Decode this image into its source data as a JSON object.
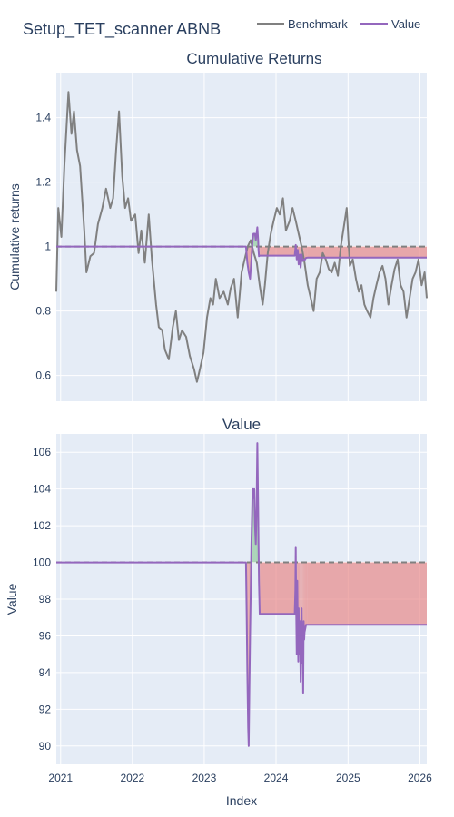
{
  "figure": {
    "title": "Setup_TET_scanner ABNB",
    "x_axis_label": "Index",
    "x_ticks": [
      "2021",
      "2022",
      "2023",
      "2024",
      "2025",
      "2026"
    ],
    "legend": [
      {
        "name": "Benchmark",
        "color": "#808080"
      },
      {
        "name": "Value",
        "color": "#9467bd"
      }
    ],
    "colors": {
      "plot_bg": "#e5ecf6",
      "grid": "#ffffff",
      "benchmark": "#808080",
      "value": "#9467bd",
      "baseline": "#808080",
      "gain_fill": "#8fc99a",
      "loss_fill": "#e88a8a"
    }
  },
  "chart_data": [
    {
      "type": "line",
      "title": "Cumulative Returns",
      "ylabel": "Cumulative returns",
      "ylim": [
        0.52,
        1.54
      ],
      "yticks": [
        0.6,
        0.8,
        1,
        1.2,
        1.4
      ],
      "xlim": [
        "2020-12-10",
        "2026-02-05"
      ],
      "baseline": 1.0,
      "series": [
        {
          "name": "Benchmark",
          "x": [
            "2020-12-10",
            "2020-12-20",
            "2021-01-05",
            "2021-01-20",
            "2021-02-10",
            "2021-02-25",
            "2021-03-10",
            "2021-03-25",
            "2021-04-10",
            "2021-05-01",
            "2021-05-12",
            "2021-06-01",
            "2021-06-20",
            "2021-07-10",
            "2021-08-01",
            "2021-08-20",
            "2021-09-10",
            "2021-09-25",
            "2021-10-10",
            "2021-10-25",
            "2021-11-10",
            "2021-11-25",
            "2021-12-10",
            "2021-12-25",
            "2022-01-15",
            "2022-02-01",
            "2022-02-15",
            "2022-03-05",
            "2022-03-25",
            "2022-04-10",
            "2022-05-01",
            "2022-05-15",
            "2022-06-01",
            "2022-06-15",
            "2022-07-05",
            "2022-07-25",
            "2022-08-10",
            "2022-08-25",
            "2022-09-10",
            "2022-10-01",
            "2022-10-20",
            "2022-11-10",
            "2022-11-25",
            "2022-12-10",
            "2022-12-28",
            "2023-01-15",
            "2023-02-01",
            "2023-02-15",
            "2023-03-01",
            "2023-03-20",
            "2023-04-10",
            "2023-05-01",
            "2023-05-15",
            "2023-06-01",
            "2023-06-20",
            "2023-07-10",
            "2023-07-25",
            "2023-08-10",
            "2023-08-25",
            "2023-09-10",
            "2023-09-25",
            "2023-10-10",
            "2023-10-25",
            "2023-11-05",
            "2023-11-20",
            "2023-12-05",
            "2023-12-20",
            "2024-01-05",
            "2024-01-20",
            "2024-02-05",
            "2024-02-20",
            "2024-03-10",
            "2024-03-25",
            "2024-04-10",
            "2024-04-25",
            "2024-05-10",
            "2024-05-25",
            "2024-06-10",
            "2024-06-25",
            "2024-07-10",
            "2024-07-25",
            "2024-08-10",
            "2024-08-25",
            "2024-09-10",
            "2024-09-25",
            "2024-10-10",
            "2024-10-25",
            "2024-11-10",
            "2024-11-25",
            "2024-12-10",
            "2024-12-25",
            "2025-01-10",
            "2025-01-25",
            "2025-02-10",
            "2025-02-25",
            "2025-03-10",
            "2025-03-25",
            "2025-04-08",
            "2025-04-25",
            "2025-05-10",
            "2025-05-25",
            "2025-06-10",
            "2025-06-25",
            "2025-07-10",
            "2025-07-25",
            "2025-08-10",
            "2025-08-25",
            "2025-09-10",
            "2025-09-25",
            "2025-10-10",
            "2025-10-25",
            "2025-11-10",
            "2025-11-25",
            "2025-12-10",
            "2025-12-25",
            "2026-01-10",
            "2026-01-25",
            "2026-02-05"
          ],
          "y": [
            0.86,
            1.12,
            1.03,
            1.25,
            1.48,
            1.35,
            1.42,
            1.3,
            1.25,
            1.05,
            0.92,
            0.97,
            0.98,
            1.07,
            1.12,
            1.18,
            1.12,
            1.15,
            1.3,
            1.42,
            1.22,
            1.12,
            1.15,
            1.08,
            1.1,
            0.98,
            1.05,
            0.95,
            1.1,
            0.96,
            0.82,
            0.75,
            0.74,
            0.68,
            0.65,
            0.75,
            0.8,
            0.71,
            0.74,
            0.72,
            0.66,
            0.62,
            0.58,
            0.62,
            0.67,
            0.78,
            0.84,
            0.82,
            0.9,
            0.84,
            0.86,
            0.82,
            0.87,
            0.9,
            0.78,
            0.92,
            0.96,
            1.0,
            1.02,
            0.98,
            0.95,
            0.88,
            0.82,
            0.88,
            0.98,
            1.04,
            1.08,
            1.12,
            1.1,
            1.15,
            1.05,
            1.08,
            1.12,
            1.08,
            1.04,
            1.0,
            0.95,
            0.88,
            0.84,
            0.8,
            0.9,
            0.92,
            0.98,
            0.96,
            0.93,
            0.92,
            0.95,
            0.91,
            1.0,
            1.06,
            1.12,
            0.94,
            0.96,
            0.9,
            0.86,
            0.88,
            0.82,
            0.8,
            0.78,
            0.84,
            0.88,
            0.92,
            0.94,
            0.9,
            0.82,
            0.88,
            0.93,
            0.96,
            0.88,
            0.86,
            0.78,
            0.84,
            0.9,
            0.92,
            0.96,
            0.88,
            0.92,
            0.84
          ]
        },
        {
          "name": "Value",
          "x": [
            "2020-12-10",
            "2023-08-01",
            "2023-08-08",
            "2023-08-15",
            "2023-08-22",
            "2023-08-29",
            "2023-09-04",
            "2023-09-08",
            "2023-09-12",
            "2023-09-16",
            "2023-09-20",
            "2023-09-24",
            "2023-09-28",
            "2023-10-02",
            "2023-10-04",
            "2023-10-06",
            "2023-10-10",
            "2023-10-14",
            "2024-04-05",
            "2024-04-10",
            "2024-04-15",
            "2024-04-20",
            "2024-04-25",
            "2024-05-01",
            "2024-05-05",
            "2024-05-10",
            "2024-05-15",
            "2024-05-20",
            "2024-05-25",
            "2024-06-01",
            "2024-06-10",
            "2026-02-05"
          ],
          "y": [
            1.0,
            1.0,
            0.95,
            0.92,
            0.9,
            0.96,
            1.02,
            1.04,
            1.04,
            1.04,
            1.02,
            1.04,
            1.06,
            1.02,
            0.99,
            0.97,
            0.972,
            0.972,
            0.972,
            1.005,
            0.96,
            0.99,
            0.945,
            0.975,
            0.935,
            0.975,
            0.955,
            0.96,
            0.958,
            0.965,
            0.966,
            0.966
          ]
        }
      ]
    },
    {
      "type": "line",
      "title": "Value",
      "ylabel": "Value",
      "ylim": [
        89.0,
        107.0
      ],
      "yticks": [
        90,
        92,
        94,
        96,
        98,
        100,
        102,
        104,
        106
      ],
      "xlim": [
        "2020-12-10",
        "2026-02-05"
      ],
      "baseline": 100,
      "series": [
        {
          "name": "Value",
          "x": [
            "2020-12-10",
            "2023-08-01",
            "2023-08-05",
            "2023-08-08",
            "2023-08-12",
            "2023-08-15",
            "2023-08-18",
            "2023-08-22",
            "2023-08-26",
            "2023-08-29",
            "2023-09-02",
            "2023-09-04",
            "2023-09-08",
            "2023-09-12",
            "2023-09-16",
            "2023-09-20",
            "2023-09-24",
            "2023-09-28",
            "2023-10-02",
            "2023-10-04",
            "2023-10-06",
            "2023-10-10",
            "2023-10-14",
            "2024-04-05",
            "2024-04-08",
            "2024-04-10",
            "2024-04-12",
            "2024-04-15",
            "2024-04-18",
            "2024-04-20",
            "2024-04-23",
            "2024-04-25",
            "2024-04-28",
            "2024-05-01",
            "2024-05-03",
            "2024-05-05",
            "2024-05-08",
            "2024-05-10",
            "2024-05-13",
            "2024-05-15",
            "2024-05-18",
            "2024-05-20",
            "2024-05-23",
            "2024-05-25",
            "2024-06-01",
            "2024-06-10",
            "2026-02-05"
          ],
          "y": [
            100,
            100,
            97,
            94,
            91,
            90,
            93,
            96,
            99,
            101,
            103,
            104,
            103.5,
            104,
            102,
            101,
            103,
            106.5,
            103,
            101,
            99,
            97.2,
            97.2,
            97.2,
            98.5,
            100.8,
            98,
            95,
            99,
            96.5,
            94.6,
            97.5,
            95,
            96.8,
            95.2,
            93.5,
            96.5,
            97.5,
            94.5,
            96.2,
            92.9,
            96.8,
            95.8,
            96.2,
            96.6,
            96.6,
            96.6
          ]
        }
      ]
    }
  ]
}
